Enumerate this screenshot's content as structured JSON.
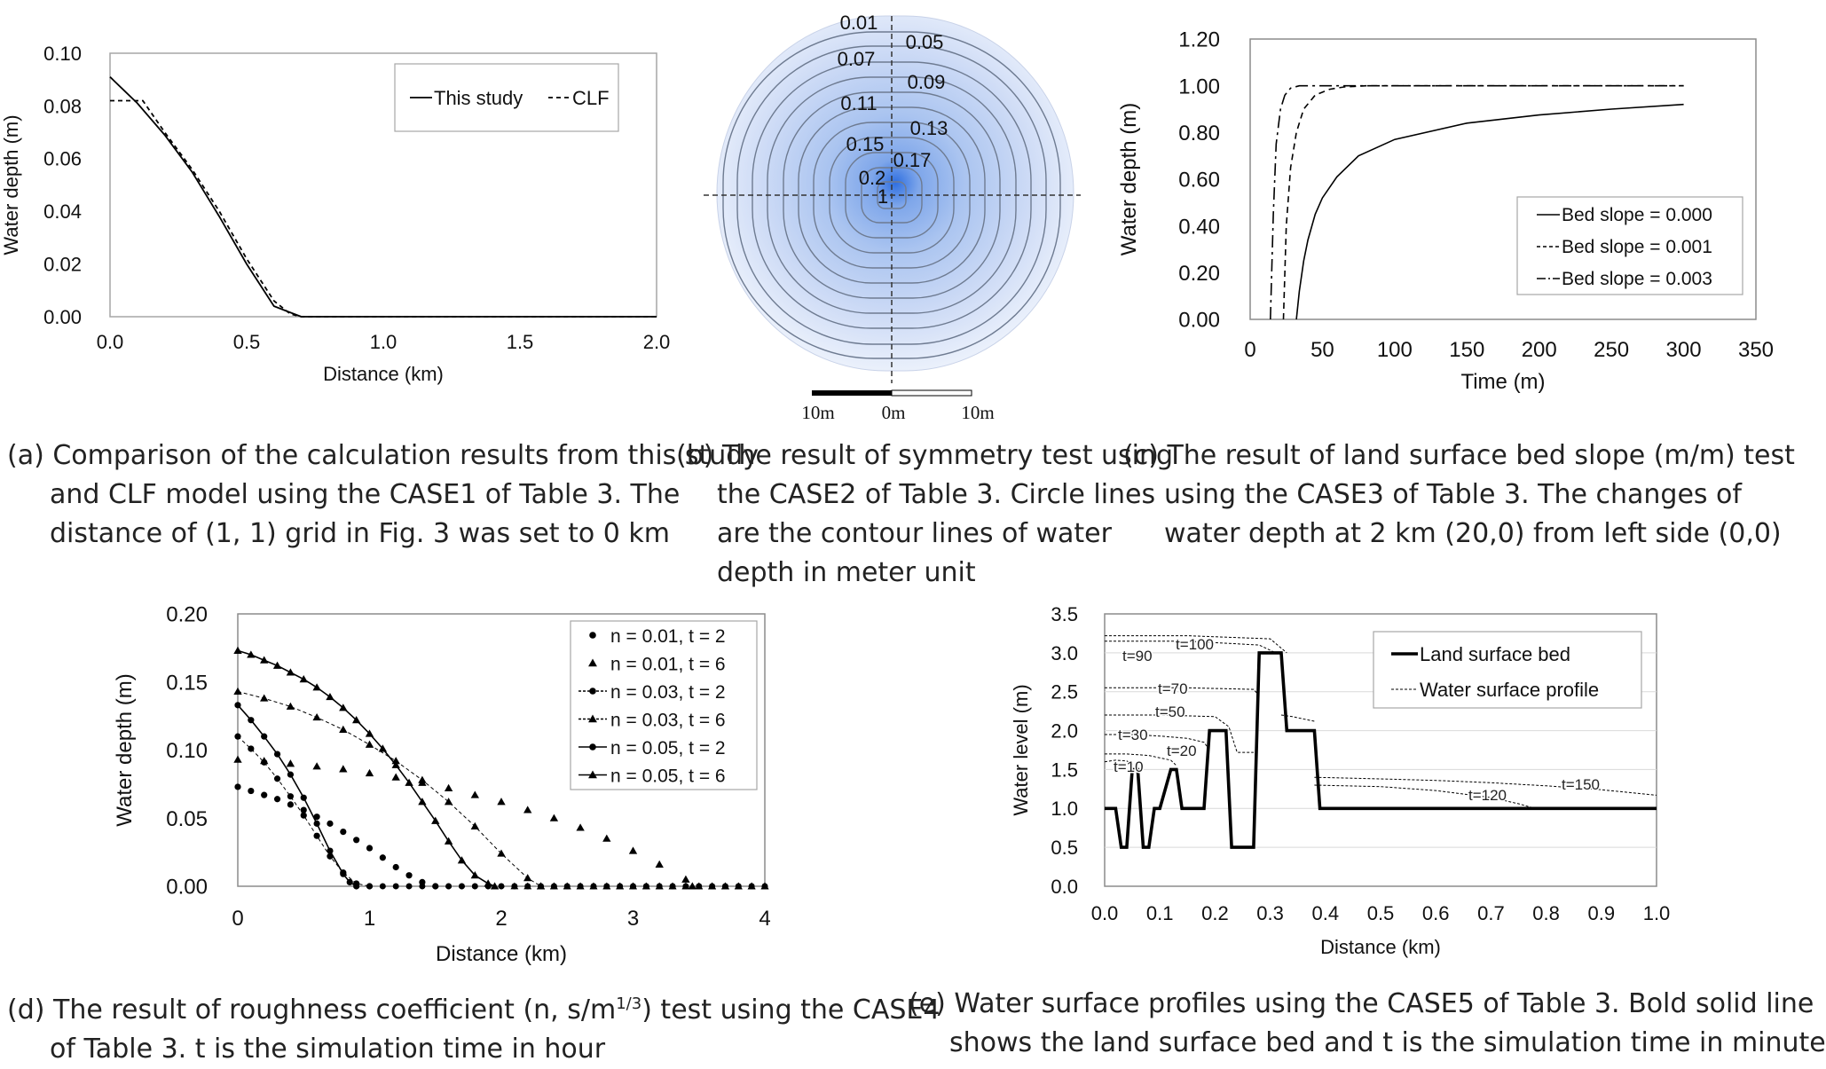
{
  "chart_data": [
    {
      "id": "a",
      "type": "line",
      "xlabel": "Distance (km)",
      "ylabel": "Water depth (m)",
      "xlim": [
        0,
        2.0
      ],
      "ylim": [
        0,
        0.1
      ],
      "xticks": [
        "0.0",
        "0.5",
        "1.0",
        "1.5",
        "2.0"
      ],
      "yticks": [
        "0.00",
        "0.02",
        "0.04",
        "0.06",
        "0.08",
        "0.10"
      ],
      "legend": [
        "This study",
        "CLF"
      ],
      "series": [
        {
          "name": "This study",
          "style": "solid",
          "x": [
            0,
            0.1,
            0.2,
            0.3,
            0.4,
            0.5,
            0.6,
            0.65,
            0.7,
            2.0
          ],
          "y": [
            0.091,
            0.081,
            0.069,
            0.055,
            0.038,
            0.02,
            0.004,
            0.002,
            0,
            0
          ]
        },
        {
          "name": "CLF",
          "style": "dashed",
          "x": [
            0,
            0.12,
            0.2,
            0.3,
            0.4,
            0.5,
            0.6,
            0.66,
            0.7,
            2.0
          ],
          "y": [
            0.082,
            0.082,
            0.07,
            0.056,
            0.04,
            0.022,
            0.006,
            0.001,
            0,
            0
          ]
        }
      ],
      "caption": [
        "(a) Comparison of the calculation results from this study",
        "and CLF model using the CASE1 of Table 3. The",
        "distance of (1, 1) grid in Fig. 3 was set to 0 km"
      ]
    },
    {
      "id": "b",
      "type": "contour",
      "contour_labels": [
        "0.01",
        "0.05",
        "0.07",
        "0.09",
        "0.11",
        "0.13",
        "0.15",
        "0.17",
        "0.2",
        "1"
      ],
      "scale_labels": [
        "10m",
        "0m",
        "10m"
      ],
      "caption": [
        "(b) The result of symmetry test using",
        "the CASE2 of Table 3. Circle lines",
        "are the contour lines of water",
        "depth in meter unit"
      ]
    },
    {
      "id": "c",
      "type": "line",
      "xlabel": "Time (m)",
      "ylabel": "Water depth (m)",
      "xlim": [
        0,
        350
      ],
      "ylim": [
        0,
        1.2
      ],
      "xticks": [
        "0",
        "50",
        "100",
        "150",
        "200",
        "250",
        "300",
        "350"
      ],
      "yticks": [
        "0.00",
        "0.20",
        "0.40",
        "0.60",
        "0.80",
        "1.00",
        "1.20"
      ],
      "legend": [
        "Bed slope = 0.000",
        "Bed slope = 0.001",
        "Bed slope = 0.003"
      ],
      "series": [
        {
          "name": "Bed slope = 0.000",
          "style": "solid",
          "x": [
            32,
            34,
            37,
            40,
            45,
            50,
            60,
            75,
            100,
            150,
            200,
            250,
            300
          ],
          "y": [
            0,
            0.12,
            0.25,
            0.34,
            0.45,
            0.52,
            0.61,
            0.7,
            0.77,
            0.84,
            0.875,
            0.9,
            0.92
          ]
        },
        {
          "name": "Bed slope = 0.001",
          "style": "dashed",
          "x": [
            23,
            25,
            28,
            32,
            37,
            45,
            55,
            65,
            80,
            100,
            300
          ],
          "y": [
            0,
            0.4,
            0.65,
            0.8,
            0.9,
            0.96,
            0.985,
            0.995,
            1.0,
            1.0,
            1.0
          ]
        },
        {
          "name": "Bed slope = 0.003",
          "style": "dashdot",
          "x": [
            14,
            16,
            18,
            21,
            24,
            28,
            34,
            300
          ],
          "y": [
            0,
            0.45,
            0.75,
            0.9,
            0.96,
            0.99,
            1.0,
            1.0
          ]
        }
      ],
      "caption": [
        "(c) The result of land surface bed slope (m/m) test",
        "using the CASE3 of Table 3. The changes of",
        "water depth at 2 km (20,0) from left side (0,0)"
      ]
    },
    {
      "id": "d",
      "type": "scatter-line",
      "xlabel": "Distance (km)",
      "ylabel": "Water depth (m)",
      "xlim": [
        0,
        4
      ],
      "ylim": [
        0,
        0.2
      ],
      "xticks": [
        "0",
        "1",
        "2",
        "3",
        "4"
      ],
      "yticks": [
        "0.00",
        "0.05",
        "0.10",
        "0.15",
        "0.20"
      ],
      "legend": [
        "n = 0.01, t = 2",
        "n = 0.01, t = 6",
        "n = 0.03, t = 2",
        "n = 0.03, t = 6",
        "n = 0.05, t = 2",
        "n = 0.05, t = 6"
      ],
      "series": [
        {
          "name": "n = 0.01, t = 2",
          "marker": "circle",
          "line": "none",
          "x": [
            0,
            0.1,
            0.2,
            0.3,
            0.4,
            0.5,
            0.6,
            0.7,
            0.8,
            0.9,
            1.0,
            1.1,
            1.2,
            1.3,
            1.4,
            1.5
          ],
          "y": [
            0.073,
            0.07,
            0.067,
            0.064,
            0.06,
            0.056,
            0.051,
            0.046,
            0.04,
            0.034,
            0.028,
            0.021,
            0.014,
            0.008,
            0.003,
            0
          ]
        },
        {
          "name": "n = 0.01, t = 6",
          "marker": "triangle",
          "line": "none",
          "x": [
            0,
            0.2,
            0.4,
            0.6,
            0.8,
            1.0,
            1.2,
            1.4,
            1.6,
            1.8,
            2.0,
            2.2,
            2.4,
            2.6,
            2.8,
            3.0,
            3.2,
            3.4,
            3.45
          ],
          "y": [
            0.093,
            0.092,
            0.09,
            0.088,
            0.086,
            0.083,
            0.08,
            0.076,
            0.072,
            0.067,
            0.062,
            0.056,
            0.05,
            0.043,
            0.035,
            0.026,
            0.016,
            0.005,
            0
          ]
        },
        {
          "name": "n = 0.03, t = 2",
          "marker": "circle",
          "line": "dashed",
          "x": [
            0,
            0.1,
            0.2,
            0.3,
            0.4,
            0.5,
            0.6,
            0.7,
            0.8,
            0.9,
            1.0
          ],
          "y": [
            0.11,
            0.101,
            0.091,
            0.079,
            0.066,
            0.052,
            0.037,
            0.022,
            0.01,
            0.002,
            0
          ]
        },
        {
          "name": "n = 0.03, t = 6",
          "marker": "triangle",
          "line": "dashed",
          "x": [
            0,
            0.2,
            0.4,
            0.6,
            0.8,
            1.0,
            1.2,
            1.4,
            1.6,
            1.8,
            2.0,
            2.2,
            2.3
          ],
          "y": [
            0.143,
            0.138,
            0.132,
            0.124,
            0.115,
            0.104,
            0.092,
            0.078,
            0.062,
            0.044,
            0.024,
            0.006,
            0
          ]
        },
        {
          "name": "n = 0.05, t = 2",
          "marker": "circle",
          "line": "solid",
          "x": [
            0,
            0.1,
            0.2,
            0.3,
            0.4,
            0.5,
            0.6,
            0.7,
            0.8,
            0.85,
            0.9
          ],
          "y": [
            0.133,
            0.122,
            0.11,
            0.097,
            0.082,
            0.065,
            0.046,
            0.026,
            0.009,
            0.003,
            0
          ]
        },
        {
          "name": "n = 0.05, t = 6",
          "marker": "triangle",
          "line": "solid",
          "x": [
            0,
            0.1,
            0.2,
            0.3,
            0.4,
            0.5,
            0.6,
            0.7,
            0.8,
            0.9,
            1.0,
            1.1,
            1.2,
            1.3,
            1.4,
            1.5,
            1.6,
            1.7,
            1.8,
            1.9,
            1.95
          ],
          "y": [
            0.173,
            0.17,
            0.166,
            0.162,
            0.157,
            0.152,
            0.146,
            0.139,
            0.131,
            0.122,
            0.112,
            0.101,
            0.089,
            0.076,
            0.062,
            0.048,
            0.033,
            0.019,
            0.008,
            0.002,
            0
          ]
        }
      ],
      "caption": [
        "(d) The result of roughness coefficient (n, s/m",
        "1/3",
        ") test using the CASE4",
        "of Table 3. t is the simulation time in hour"
      ]
    },
    {
      "id": "e",
      "type": "line",
      "xlabel": "Distance (km)",
      "ylabel": "Water level (m)",
      "xlim": [
        0,
        1.0
      ],
      "ylim": [
        0,
        3.5
      ],
      "xticks": [
        "0.0",
        "0.1",
        "0.2",
        "0.3",
        "0.4",
        "0.5",
        "0.6",
        "0.7",
        "0.8",
        "0.9",
        "1.0"
      ],
      "yticks": [
        "0.0",
        "0.5",
        "1.0",
        "1.5",
        "2.0",
        "2.5",
        "3.0",
        "3.5"
      ],
      "legend": [
        "Land surface bed",
        "Water surface profile"
      ],
      "bed": {
        "x": [
          0,
          0.02,
          0.03,
          0.04,
          0.05,
          0.06,
          0.07,
          0.08,
          0.09,
          0.1,
          0.12,
          0.13,
          0.14,
          0.18,
          0.19,
          0.22,
          0.23,
          0.27,
          0.28,
          0.32,
          0.33,
          0.38,
          0.39,
          1.0
        ],
        "y": [
          1.0,
          1.0,
          0.5,
          0.5,
          1.5,
          1.5,
          0.5,
          0.5,
          1.0,
          1.0,
          1.5,
          1.5,
          1.0,
          1.0,
          2.0,
          2.0,
          0.5,
          0.5,
          3.0,
          3.0,
          2.0,
          2.0,
          1.0,
          1.0
        ]
      },
      "profiles": [
        {
          "label": "t=10",
          "x": [
            0,
            0.02,
            0.04,
            0.055
          ],
          "y": [
            1.6,
            1.62,
            1.61,
            1.55
          ]
        },
        {
          "label": "t=20",
          "x": [
            0,
            0.04,
            0.08,
            0.12,
            0.13
          ],
          "y": [
            1.7,
            1.7,
            1.68,
            1.62,
            1.55
          ]
        },
        {
          "label": "t=30",
          "x": [
            0,
            0.05,
            0.1,
            0.15,
            0.18,
            0.19
          ],
          "y": [
            1.95,
            1.95,
            1.93,
            1.9,
            1.85,
            1.75
          ]
        },
        {
          "label": "t=50",
          "x": [
            0,
            0.1,
            0.2,
            0.225,
            0.24,
            0.27
          ],
          "y": [
            2.2,
            2.2,
            2.18,
            2.05,
            1.72,
            1.72
          ]
        },
        {
          "label": "t=70",
          "x": [
            0,
            0.15,
            0.27,
            0.28
          ],
          "y": [
            2.55,
            2.55,
            2.53,
            2.45
          ]
        },
        {
          "label": "t=90",
          "x": [
            0,
            0.15,
            0.28,
            0.31
          ],
          "y": [
            3.15,
            3.15,
            3.1,
            3.0
          ]
        },
        {
          "label": "t=100",
          "x": [
            0,
            0.15,
            0.3,
            0.33
          ],
          "y": [
            3.22,
            3.22,
            3.18,
            3.0
          ]
        },
        {
          "label": "t=120",
          "x": [
            0.38,
            0.5,
            0.6,
            0.7,
            0.75,
            0.78
          ],
          "y": [
            1.3,
            1.28,
            1.23,
            1.14,
            1.06,
            1.0
          ]
        },
        {
          "label": "t=150",
          "x": [
            0.38,
            0.5,
            0.6,
            0.7,
            0.8,
            0.9,
            1.0
          ],
          "y": [
            1.4,
            1.38,
            1.36,
            1.33,
            1.29,
            1.24,
            1.17
          ]
        },
        {
          "label": "",
          "x": [
            0.32,
            0.34,
            0.38
          ],
          "y": [
            2.2,
            2.18,
            2.12
          ]
        }
      ],
      "caption": [
        "(e) Water surface profiles using the CASE5 of Table 3. Bold solid line",
        "shows the land surface bed and t is the simulation time in minute"
      ]
    }
  ]
}
